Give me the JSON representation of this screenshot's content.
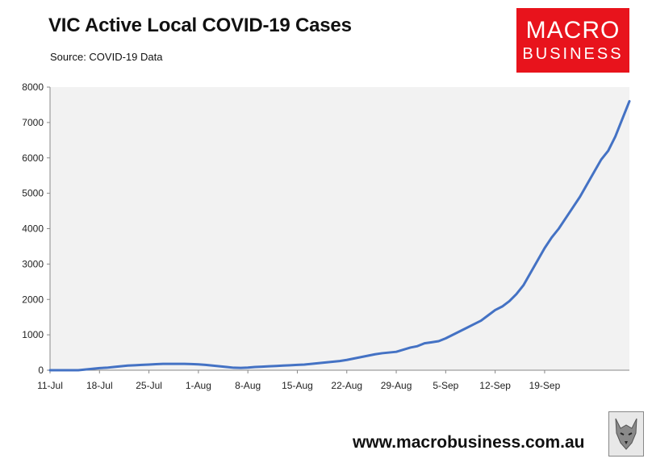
{
  "header": {
    "title": "VIC Active Local COVID-19 Cases",
    "subtitle": "Source: COVID-19 Data"
  },
  "logo": {
    "line1": "MACRO",
    "line2": "BUSINESS",
    "color": "#e8131c"
  },
  "footer": {
    "url": "www.macrobusiness.com.au"
  },
  "wolf_logo": {
    "icon": "wolf-head-icon"
  },
  "chart_data": {
    "type": "line",
    "title": "VIC Active Local COVID-19 Cases",
    "xlabel": "",
    "ylabel": "",
    "ylim": [
      0,
      8000
    ],
    "yticks": [
      0,
      1000,
      2000,
      3000,
      4000,
      5000,
      6000,
      7000,
      8000
    ],
    "xticks": [
      "11-Jul",
      "18-Jul",
      "25-Jul",
      "1-Aug",
      "8-Aug",
      "15-Aug",
      "22-Aug",
      "29-Aug",
      "5-Sep",
      "12-Sep",
      "19-Sep"
    ],
    "x_start": "11-Jul",
    "plot_background": "#f2f2f2",
    "grid": false,
    "series": [
      {
        "color": "#4472c4",
        "values": [
          0,
          0,
          0,
          0,
          0,
          20,
          40,
          60,
          70,
          90,
          110,
          130,
          140,
          150,
          160,
          170,
          180,
          180,
          180,
          180,
          175,
          165,
          150,
          130,
          110,
          90,
          70,
          65,
          75,
          90,
          100,
          110,
          120,
          130,
          140,
          150,
          160,
          180,
          200,
          220,
          240,
          260,
          290,
          330,
          370,
          410,
          450,
          480,
          500,
          520,
          580,
          640,
          680,
          760,
          790,
          820,
          900,
          1000,
          1100,
          1200,
          1300,
          1400,
          1550,
          1700,
          1800,
          1950,
          2150,
          2400,
          2750,
          3100,
          3450,
          3750,
          4000,
          4300,
          4600,
          4900,
          5250,
          5600,
          5950,
          6200,
          6600,
          7100,
          7600
        ]
      }
    ]
  }
}
